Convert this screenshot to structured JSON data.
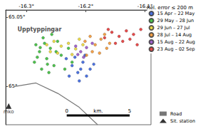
{
  "chart_data": {
    "type": "scatter",
    "legend_title": "Rel. error ≤ 200 m",
    "legend": "right",
    "grid": false,
    "marker": "circle",
    "xlim": [
      -16.335,
      -16.09
    ],
    "ylim": [
      64.9725,
      65.055
    ],
    "xticks": [
      {
        "value": -16.3,
        "label": "-16.3°"
      },
      {
        "value": -16.2,
        "label": "-16.2°"
      },
      {
        "value": -16.1,
        "label": "-16.1°"
      }
    ],
    "yticks": [
      {
        "value": 65,
        "label": "65°"
      },
      {
        "value": 65.05,
        "label": "65.05°"
      }
    ],
    "annotations": [
      {
        "text": "Upptyppingar",
        "x": -16.278,
        "y": 65.041
      }
    ],
    "station": {
      "name": "Sit. station",
      "label": "mko",
      "marker": "triangle",
      "color": "#000000",
      "x": -16.33,
      "y": 64.986
    },
    "road": {
      "name": "Road",
      "color": "#777777",
      "line_style": "solid",
      "x": [
        -16.32,
        -16.284,
        -16.247,
        -16.211,
        -16.18
      ],
      "y": [
        65.0,
        65.0025,
        64.995,
        64.985,
        64.9725
      ]
    },
    "scale_bar": {
      "label": "km.",
      "ticks": [
        0,
        5
      ]
    },
    "series": [
      {
        "name": "15 Apr – 22 May",
        "color": "#1f4fd8",
        "x": [
          -16.2329,
          -16.2231,
          -16.2134,
          -16.2048,
          -16.1987,
          -16.1926,
          -16.228,
          -16.2109,
          -16.2012,
          -16.1865,
          -16.2183,
          -16.2085
        ],
        "y": [
          65.02,
          65.015,
          65.01,
          65.0175,
          65.0075,
          65.0125,
          65.0075,
          65.004,
          65.0225,
          65.016,
          65.021,
          65.0125
        ]
      },
      {
        "name": "29 May – 28 Jun",
        "color": "#22b322",
        "x": [
          -16.2841,
          -16.278,
          -16.2719,
          -16.2658,
          -16.2597,
          -16.2536,
          -16.2475,
          -16.2866,
          -16.2744,
          -16.2622,
          -16.2414,
          -16.2353,
          -16.2695,
          -16.2573,
          -16.2817,
          -16.25,
          -16.2292,
          -16.2231,
          -16.2646,
          -16.2768
        ],
        "y": [
          65.03,
          65.025,
          65.035,
          65.02,
          65.0275,
          65.015,
          65.0325,
          65.0175,
          65.0125,
          65.01,
          65.0225,
          65.0125,
          65.031,
          65.0375,
          65.021,
          65.025,
          65.0275,
          65.0175,
          65.016,
          65.028
        ]
      },
      {
        "name": "29 Jun – 27 Jul",
        "color": "#e6d21e",
        "x": [
          -16.2658,
          -16.2536,
          -16.2414,
          -16.2292,
          -16.217,
          -16.2048,
          -16.2475,
          -16.2231,
          -16.2597,
          -16.2109
        ],
        "y": [
          65.03,
          65.0325,
          65.029,
          65.031,
          65.027,
          65.03,
          65.024,
          65.023,
          65.025,
          65.034
        ]
      },
      {
        "name": "28 Jul – 14 Aug",
        "color": "#f08a1c",
        "x": [
          -16.2012,
          -16.1926,
          -16.1841,
          -16.1743,
          -16.1646,
          -16.189,
          -16.1987,
          -16.1768,
          -16.1682,
          -16.1597
        ],
        "y": [
          65.0325,
          65.036,
          65.03,
          65.034,
          65.0275,
          65.025,
          65.0225,
          65.024,
          65.0375,
          65.031
        ]
      },
      {
        "name": "15 Aug – 22 Aug",
        "color": "#8a3fc0",
        "x": [
          -16.217,
          -16.2085,
          -16.1987,
          -16.189,
          -16.2036,
          -16.2134
        ],
        "y": [
          65.029,
          65.025,
          65.028,
          65.031,
          65.021,
          65.023
        ]
      },
      {
        "name": "23 Aug – 02 Sep",
        "color": "#e01e1e",
        "x": [
          -16.1682,
          -16.156,
          -16.1438,
          -16.1316,
          -16.1194,
          -16.1072,
          -16.15,
          -16.1377,
          -16.1255,
          -16.1133,
          -16.1621
        ],
        "y": [
          65.035,
          65.039,
          65.036,
          65.04,
          65.0375,
          65.041,
          65.031,
          65.0325,
          65.034,
          65.03,
          65.041
        ]
      }
    ]
  }
}
